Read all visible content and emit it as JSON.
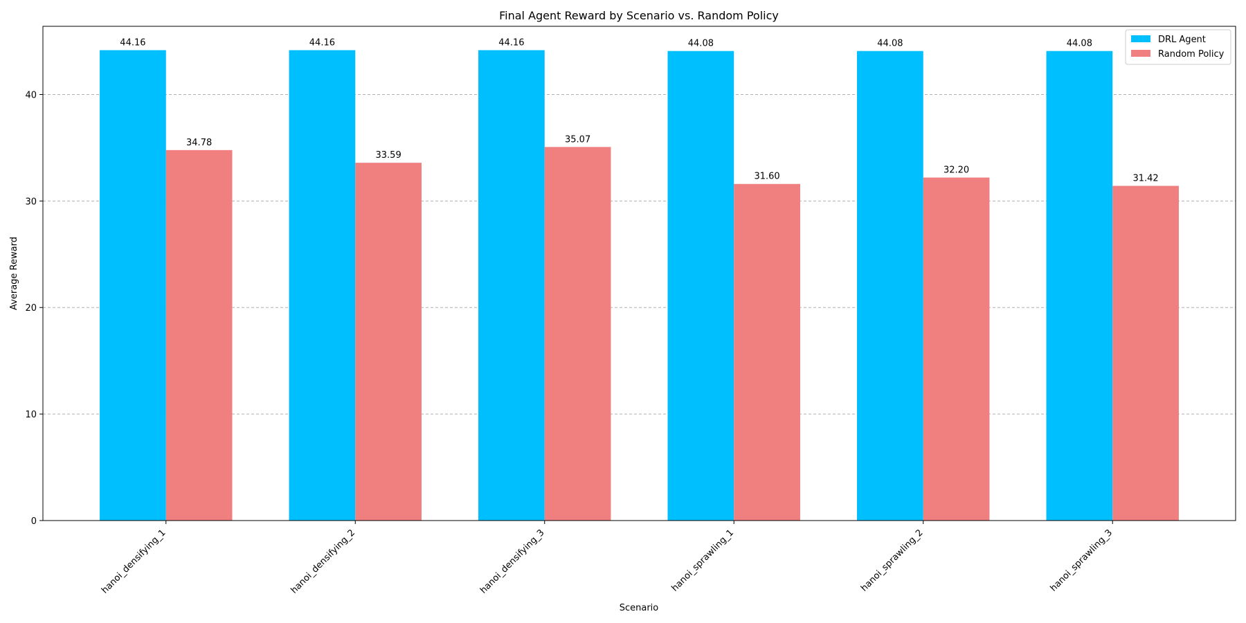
{
  "chart_data": {
    "type": "bar",
    "title": "Final Agent Reward by Scenario vs. Random Policy",
    "xlabel": "Scenario",
    "ylabel": "Average Reward",
    "categories": [
      "hanoi_densifying_1",
      "hanoi_densifying_2",
      "hanoi_densifying_3",
      "hanoi_sprawling_1",
      "hanoi_sprawling_2",
      "hanoi_sprawling_3"
    ],
    "series": [
      {
        "name": "DRL Agent",
        "color": "#00bfff",
        "values": [
          44.16,
          44.16,
          44.16,
          44.08,
          44.08,
          44.08
        ],
        "labels": [
          "44.16",
          "44.16",
          "44.16",
          "44.08",
          "44.08",
          "44.08"
        ]
      },
      {
        "name": "Random Policy",
        "color": "#f08080",
        "values": [
          34.78,
          33.59,
          35.07,
          31.6,
          32.2,
          31.42
        ],
        "labels": [
          "34.78",
          "33.59",
          "35.07",
          "31.60",
          "32.20",
          "31.42"
        ]
      }
    ],
    "ylim": [
      0,
      46.4
    ],
    "yticks": [
      0,
      10,
      20,
      30,
      40
    ],
    "grid": "y-dashed",
    "legend_position": "top-right"
  }
}
